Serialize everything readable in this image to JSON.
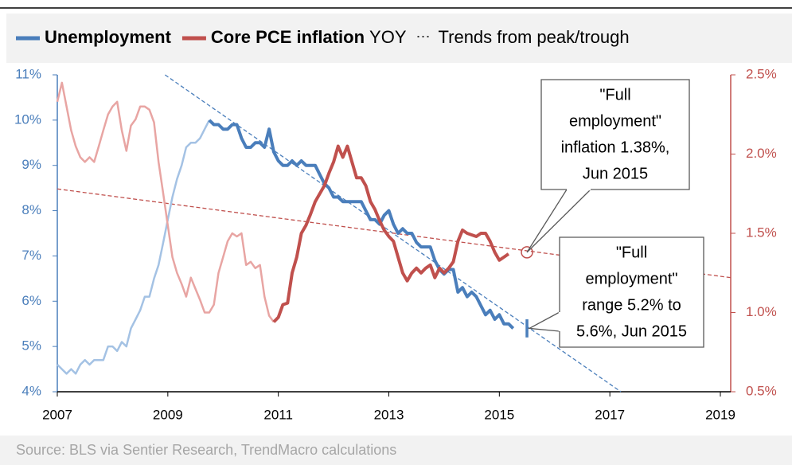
{
  "chart_data": {
    "type": "line",
    "legend": {
      "suffix": "YOY",
      "trend_label": "Trends from peak/trough"
    },
    "source": "Source: BLS via Sentier Research, TrendMacro calculations",
    "x": [
      2007,
      2007.083,
      2007.167,
      2007.25,
      2007.333,
      2007.417,
      2007.5,
      2007.583,
      2007.667,
      2007.75,
      2007.833,
      2007.917,
      2008,
      2008.083,
      2008.167,
      2008.25,
      2008.333,
      2008.417,
      2008.5,
      2008.583,
      2008.667,
      2008.75,
      2008.833,
      2008.917,
      2009,
      2009.083,
      2009.167,
      2009.25,
      2009.333,
      2009.417,
      2009.5,
      2009.583,
      2009.667,
      2009.75,
      2009.833,
      2009.917,
      2010,
      2010.083,
      2010.167,
      2010.25,
      2010.333,
      2010.417,
      2010.5,
      2010.583,
      2010.667,
      2010.75,
      2010.833,
      2010.917,
      2011,
      2011.083,
      2011.167,
      2011.25,
      2011.333,
      2011.417,
      2011.5,
      2011.583,
      2011.667,
      2011.75,
      2011.833,
      2011.917,
      2012,
      2012.083,
      2012.167,
      2012.25,
      2012.333,
      2012.417,
      2012.5,
      2012.583,
      2012.667,
      2012.75,
      2012.833,
      2012.917,
      2013,
      2013.083,
      2013.167,
      2013.25,
      2013.333,
      2013.417,
      2013.5,
      2013.583,
      2013.667,
      2013.75,
      2013.833,
      2013.917,
      2014,
      2014.083,
      2014.167,
      2014.25,
      2014.333,
      2014.417,
      2014.5,
      2014.583,
      2014.667,
      2014.75,
      2014.833,
      2014.917,
      2015,
      2015.083,
      2015.167,
      2015.25
    ],
    "series": [
      {
        "name": "Unemployment",
        "color": "#4a7ebb",
        "faded_color": "#a4c2e4",
        "axis": "y",
        "values": [
          4.6,
          4.5,
          4.4,
          4.5,
          4.4,
          4.6,
          4.7,
          4.6,
          4.7,
          4.7,
          4.7,
          5.0,
          5.0,
          4.9,
          5.1,
          5.0,
          5.4,
          5.6,
          5.8,
          6.1,
          6.1,
          6.5,
          6.8,
          7.3,
          7.8,
          8.3,
          8.7,
          9.0,
          9.4,
          9.5,
          9.5,
          9.6,
          9.8,
          10.0,
          9.9,
          9.9,
          9.8,
          9.8,
          9.9,
          9.9,
          9.6,
          9.4,
          9.4,
          9.5,
          9.5,
          9.4,
          9.8,
          9.3,
          9.1,
          9.0,
          9.0,
          9.1,
          9.0,
          9.1,
          9.0,
          9.0,
          9.0,
          8.8,
          8.6,
          8.5,
          8.3,
          8.3,
          8.2,
          8.2,
          8.2,
          8.2,
          8.2,
          8.0,
          7.8,
          7.8,
          7.7,
          7.9,
          8.0,
          7.7,
          7.5,
          7.6,
          7.5,
          7.5,
          7.3,
          7.2,
          7.2,
          7.2,
          6.9,
          6.7,
          6.6,
          6.7,
          6.7,
          6.2,
          6.3,
          6.1,
          6.2,
          6.1,
          5.9,
          5.7,
          5.8,
          5.6,
          5.7,
          5.5,
          5.5,
          5.4
        ]
      },
      {
        "name": "Core PCE inflation",
        "color": "#c0504d",
        "faded_color": "#e8a5a3",
        "axis": "y2",
        "values": [
          2.33,
          2.45,
          2.3,
          2.15,
          2.05,
          1.98,
          1.95,
          1.98,
          1.95,
          2.05,
          2.15,
          2.25,
          2.3,
          2.33,
          2.15,
          2.02,
          2.18,
          2.22,
          2.3,
          2.3,
          2.28,
          2.2,
          1.95,
          1.75,
          1.55,
          1.35,
          1.25,
          1.18,
          1.1,
          1.22,
          1.15,
          1.08,
          1.0,
          1.0,
          1.05,
          1.25,
          1.35,
          1.45,
          1.5,
          1.48,
          1.5,
          1.3,
          1.32,
          1.28,
          1.3,
          1.1,
          0.98,
          0.94,
          0.97,
          1.05,
          1.06,
          1.25,
          1.35,
          1.5,
          1.55,
          1.62,
          1.7,
          1.75,
          1.8,
          1.88,
          1.95,
          2.05,
          1.98,
          2.05,
          1.95,
          1.85,
          1.85,
          1.8,
          1.7,
          1.65,
          1.58,
          1.52,
          1.48,
          1.45,
          1.35,
          1.25,
          1.2,
          1.25,
          1.28,
          1.25,
          1.28,
          1.3,
          1.22,
          1.28,
          1.25,
          1.28,
          1.32,
          1.45,
          1.52,
          1.5,
          1.49,
          1.48,
          1.5,
          1.5,
          1.45,
          1.38,
          1.33,
          1.35,
          1.37,
          null
        ]
      }
    ],
    "trends": [
      {
        "axis": "y",
        "color": "#4a7ebb",
        "x": [
          2008.95,
          2017.2
        ],
        "values": [
          11,
          4
        ]
      },
      {
        "axis": "y2",
        "color": "#c0504d",
        "x": [
          2007,
          2019.19
        ],
        "values": [
          1.78,
          1.22
        ]
      }
    ],
    "annotations": [
      {
        "lines": [
          "\"Full",
          "employment\"",
          "inflation 1.38%,",
          "Jun 2015"
        ],
        "x": 2015.5,
        "value": 1.38,
        "axis": "y2"
      },
      {
        "lines": [
          "\"Full",
          "employment\"",
          "range 5.2% to",
          "5.6%, Jun 2015"
        ],
        "x": 2015.5,
        "low": 5.2,
        "high": 5.6,
        "axis": "y"
      }
    ],
    "xlim": [
      2007,
      2019
    ],
    "xticks": [
      2007,
      2009,
      2011,
      2013,
      2015,
      2017,
      2019
    ],
    "ylim": [
      4,
      11
    ],
    "yticks": [
      {
        "value": 4,
        "label": "4%"
      },
      {
        "value": 5,
        "label": "5%"
      },
      {
        "value": 6,
        "label": "6%"
      },
      {
        "value": 7,
        "label": "7%"
      },
      {
        "value": 8,
        "label": "8%"
      },
      {
        "value": 9,
        "label": "9%"
      },
      {
        "value": 10,
        "label": "10%"
      },
      {
        "value": 11,
        "label": "11%"
      }
    ],
    "y2lim": [
      0.5,
      2.5
    ],
    "y2ticks": [
      {
        "value": 0.5,
        "label": "0.5%"
      },
      {
        "value": 1.0,
        "label": "1.0%"
      },
      {
        "value": 1.5,
        "label": "1.5%"
      },
      {
        "value": 2.0,
        "label": "2.0%"
      },
      {
        "value": 2.5,
        "label": "2.5%"
      }
    ]
  }
}
